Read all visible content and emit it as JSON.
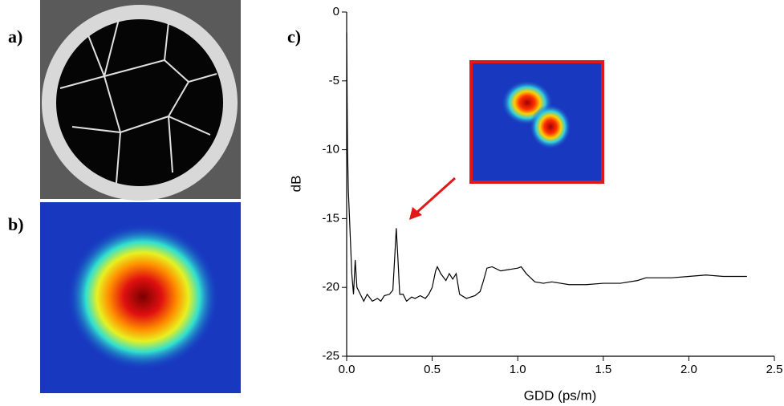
{
  "panel_labels": [
    "a)",
    "b)",
    "c)"
  ],
  "chart_data": {
    "type": "line",
    "xlabel": "GDD (ps/m)",
    "ylabel": "dB",
    "color": "#000000",
    "xlim": [
      0,
      2.5
    ],
    "ylim": [
      -25,
      0
    ],
    "xticks": [
      {
        "value": 0,
        "label": "0.0"
      },
      0.5,
      {
        "value": 1,
        "label": "1.0"
      },
      1.5,
      {
        "value": 2,
        "label": "2.0"
      },
      2.5
    ],
    "yticks": [
      0,
      -5,
      -10,
      -15,
      -20,
      -25
    ],
    "x": [
      0,
      0.005,
      0.01,
      0.02,
      0.03,
      0.04,
      0.05,
      0.06,
      0.08,
      0.1,
      0.12,
      0.15,
      0.18,
      0.2,
      0.22,
      0.25,
      0.27,
      0.28,
      0.29,
      0.3,
      0.31,
      0.33,
      0.35,
      0.38,
      0.4,
      0.43,
      0.46,
      0.48,
      0.5,
      0.52,
      0.53,
      0.55,
      0.58,
      0.6,
      0.62,
      0.64,
      0.66,
      0.7,
      0.75,
      0.78,
      0.8,
      0.82,
      0.85,
      0.9,
      0.95,
      1.0,
      1.02,
      1.05,
      1.1,
      1.15,
      1.2,
      1.3,
      1.4,
      1.5,
      1.6,
      1.7,
      1.75,
      1.8,
      1.9,
      2.0,
      2.1,
      2.2,
      2.3,
      2.34
    ],
    "values": [
      -1.5,
      -10,
      -13,
      -16,
      -19,
      -20.5,
      -18,
      -20,
      -20.5,
      -21,
      -20.5,
      -21,
      -20.8,
      -21,
      -20.6,
      -20.5,
      -20.2,
      -18,
      -15.7,
      -18,
      -20.5,
      -20.5,
      -21,
      -20.7,
      -20.8,
      -20.6,
      -20.8,
      -20.5,
      -20,
      -18.8,
      -18.5,
      -19,
      -19.5,
      -19,
      -19.4,
      -19,
      -20.5,
      -20.8,
      -20.6,
      -20.3,
      -19.5,
      -18.6,
      -18.5,
      -18.8,
      -18.7,
      -18.6,
      -18.5,
      -19,
      -19.6,
      -19.7,
      -19.6,
      -19.8,
      -19.8,
      -19.7,
      -19.7,
      -19.5,
      -19.3,
      -19.3,
      -19.3,
      -19.2,
      -19.1,
      -19.2,
      -19.2,
      -19.2
    ]
  }
}
